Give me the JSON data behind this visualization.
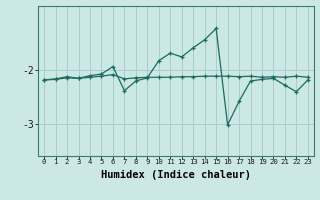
{
  "xlabel": "Humidex (Indice chaleur)",
  "background_color": "#cce8e4",
  "grid_color": "#aacccc",
  "line_color": "#1a6b60",
  "xlim": [
    -0.5,
    23.5
  ],
  "ylim": [
    -3.6,
    -0.8
  ],
  "yticks": [
    -3,
    -2
  ],
  "line1_x": [
    0,
    1,
    2,
    3,
    4,
    5,
    6,
    7,
    8,
    9,
    10,
    11,
    12,
    13,
    14,
    15,
    16,
    17,
    18,
    19,
    20,
    21,
    22,
    23
  ],
  "line1_y": [
    -2.18,
    -2.17,
    -2.14,
    -2.15,
    -2.13,
    -2.11,
    -2.08,
    -2.16,
    -2.14,
    -2.13,
    -2.13,
    -2.13,
    -2.12,
    -2.12,
    -2.11,
    -2.11,
    -2.11,
    -2.12,
    -2.11,
    -2.13,
    -2.12,
    -2.13,
    -2.11,
    -2.13
  ],
  "line2_x": [
    0,
    1,
    2,
    3,
    4,
    5,
    6,
    7,
    8,
    9,
    10,
    11,
    12,
    13,
    14,
    15,
    16,
    17,
    18,
    19,
    20,
    21,
    22,
    23
  ],
  "line2_y": [
    -2.18,
    -2.16,
    -2.12,
    -2.15,
    -2.1,
    -2.07,
    -1.93,
    -2.38,
    -2.2,
    -2.14,
    -1.82,
    -1.68,
    -1.75,
    -1.58,
    -1.43,
    -1.22,
    -3.02,
    -2.58,
    -2.2,
    -2.17,
    -2.15,
    -2.28,
    -2.4,
    -2.18
  ],
  "xtick_labels": [
    "0",
    "1",
    "2",
    "3",
    "4",
    "5",
    "6",
    "7",
    "8",
    "9",
    "10",
    "11",
    "12",
    "13",
    "14",
    "15",
    "16",
    "17",
    "18",
    "19",
    "20",
    "21",
    "22",
    "23"
  ]
}
